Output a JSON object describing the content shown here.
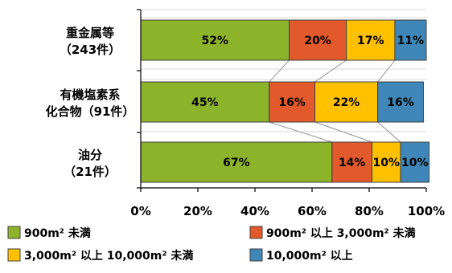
{
  "chart_data": {
    "type": "bar",
    "orientation": "horizontal",
    "stacked": true,
    "percent": true,
    "categories": [
      [
        "重金属等",
        "（243件）"
      ],
      [
        "有機塩素系",
        "化合物（91件）"
      ],
      [
        "油分",
        "（21件）"
      ]
    ],
    "series": [
      {
        "name": "900m² 未満",
        "color": "#8db32b",
        "values": [
          52,
          45,
          67
        ],
        "labels": [
          "52%",
          "45%",
          "67%"
        ]
      },
      {
        "name": "900m² 以上 3,000m² 未満",
        "color": "#e25a2c",
        "values": [
          20,
          16,
          14
        ],
        "labels": [
          "20%",
          "16%",
          "14%"
        ]
      },
      {
        "name": "3,000m² 以上 10,000m² 未満",
        "color": "#ffc000",
        "values": [
          17,
          22,
          10
        ],
        "labels": [
          "17%",
          "22%",
          "10%"
        ]
      },
      {
        "name": "10,000m² 以上",
        "color": "#3e87b8",
        "values": [
          11,
          16,
          10
        ],
        "labels": [
          "11%",
          "16%",
          "10%"
        ]
      }
    ],
    "x_ticks": [
      "0%",
      "20%",
      "40%",
      "60%",
      "80%",
      "100%"
    ],
    "xlim": [
      0,
      100
    ],
    "grid": true,
    "series_lines": true,
    "legend_position": "bottom"
  }
}
